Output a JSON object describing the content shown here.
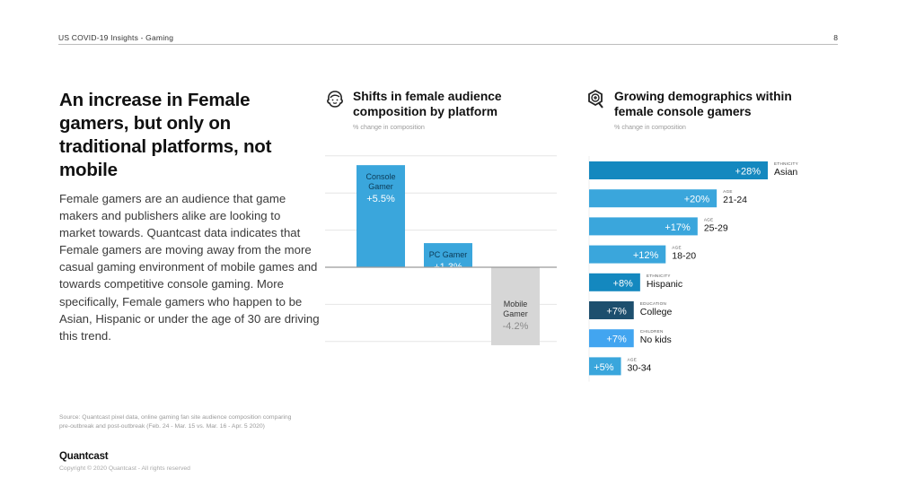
{
  "header": {
    "title": "US COVID-19 Insights - Gaming",
    "page_number": "8"
  },
  "headline": "An increase in Female gamers, but only on traditional platforms, not mobile",
  "body": "Female gamers are an audience that game makers and publishers alike are looking to market towards. Quantcast data indicates that Female gamers are moving away from the more casual gaming environment of mobile games and towards competitive console gaming. More specifically, Female gamers who happen to be Asian, Hispanic or under the age of 30 are driving this trend.",
  "footer": {
    "source": "Source: Quantcast pixel data, online gaming fan site audience composition comparing pre-outbreak and post-outbreak (Feb. 24 - Mar. 15 vs. Mar. 16 - Apr. 5 2020)",
    "brand": "Quantcast",
    "copyright": "Copyright © 2020 Quantcast - All rights reserved"
  },
  "icons": {
    "left_chart": "female-face-icon",
    "right_chart": "magnify-plus-icon"
  },
  "colors": {
    "positive": "#3aa6dc",
    "negative": "#d6d6d6",
    "positive_text": "#ffffff",
    "positive_label_dark": "#0b3a56",
    "negative_text": "#333333",
    "negative_value": "#8a8a8a",
    "grid": "#e6e6e6",
    "axis": "#9a9a9a"
  },
  "chart_data": [
    {
      "type": "bar",
      "title": "Shifts in female audience composition by platform",
      "subtitle": "% change in composition",
      "categories": [
        "Console Gamer",
        "PC Gamer",
        "Mobile Gamer"
      ],
      "category_lines": [
        [
          "Console",
          "Gamer"
        ],
        [
          "PC Gamer"
        ],
        [
          "Mobile",
          "Gamer"
        ]
      ],
      "values": [
        5.5,
        1.3,
        -4.2
      ],
      "value_labels": [
        "+5.5%",
        "+1.3%",
        "-4.2%"
      ],
      "ylim": [
        -4.2,
        6
      ],
      "grid": true,
      "xlabel": "",
      "ylabel": ""
    },
    {
      "type": "bar",
      "orientation": "horizontal",
      "title": "Growing demographics within female console gamers",
      "subtitle": "% change in composition",
      "categories": [
        "Asian",
        "21-24",
        "25-29",
        "18-20",
        "Hispanic",
        "College",
        "No kids",
        "30-34"
      ],
      "groups": [
        "ETHNICITY",
        "AGE",
        "AGE",
        "AGE",
        "ETHNICITY",
        "EDUCATION",
        "CHILDREN",
        "AGE"
      ],
      "values": [
        28,
        20,
        17,
        12,
        8,
        7,
        7,
        5
      ],
      "value_labels": [
        "+28%",
        "+20%",
        "+17%",
        "+12%",
        "+8%",
        "+7%",
        "+7%",
        "+5%"
      ],
      "bar_colors": [
        "#1488bf",
        "#3aa6dc",
        "#3aa6dc",
        "#3aa6dc",
        "#1488bf",
        "#1d4f6e",
        "#42a5f0",
        "#3aa6dc"
      ],
      "xlim": [
        0,
        28
      ],
      "grid": false,
      "xlabel": "",
      "ylabel": ""
    }
  ]
}
